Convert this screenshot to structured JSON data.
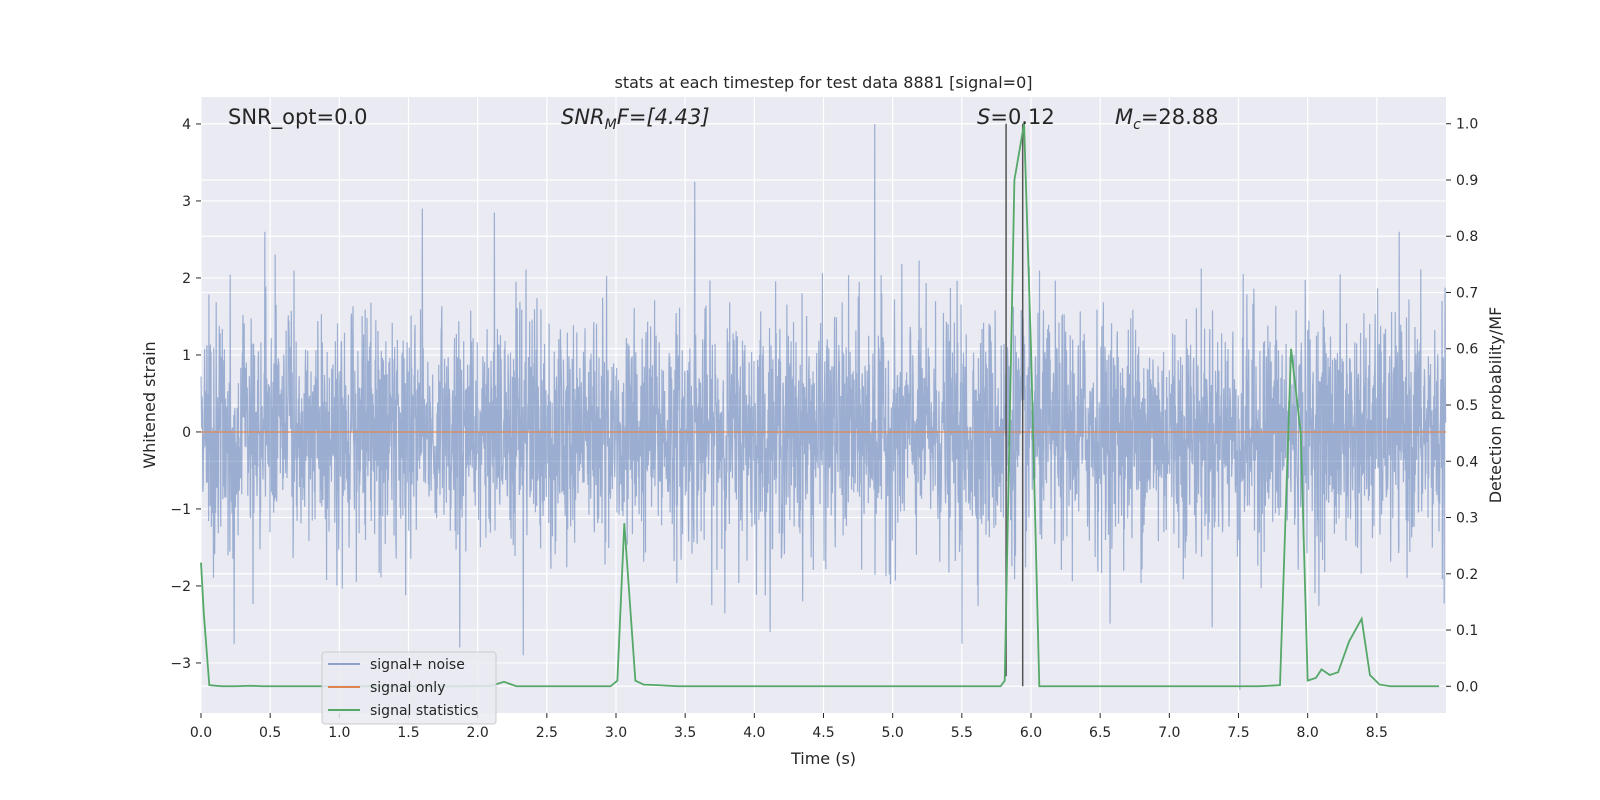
{
  "chart_data": {
    "type": "line",
    "title": "stats at each timestep for test data 8881 [signal=0]",
    "xlabel": "Time (s)",
    "ylabel_left": "Whitened strain",
    "ylabel_right": "Detection probability/MF",
    "xlim": [
      0.0,
      9.0
    ],
    "ylim_left": [
      -3.65,
      4.35
    ],
    "ylim_right": [
      -0.0475,
      1.0475
    ],
    "x_ticks": [
      0.0,
      0.5,
      1.0,
      1.5,
      2.0,
      2.5,
      3.0,
      3.5,
      4.0,
      4.5,
      5.0,
      5.5,
      6.0,
      6.5,
      7.0,
      7.5,
      8.0,
      8.5
    ],
    "x_tick_labels": [
      "0.0",
      "0.5",
      "1.0",
      "1.5",
      "2.0",
      "2.5",
      "3.0",
      "3.5",
      "4.0",
      "4.5",
      "5.0",
      "5.5",
      "6.0",
      "6.5",
      "7.0",
      "7.5",
      "8.0",
      "8.5"
    ],
    "y_left_ticks": [
      -3,
      -2,
      -1,
      0,
      1,
      2,
      3,
      4
    ],
    "y_left_tick_labels": [
      "−3",
      "−2",
      "−1",
      "0",
      "1",
      "2",
      "3",
      "4"
    ],
    "y_right_ticks": [
      0.0,
      0.1,
      0.2,
      0.3,
      0.4,
      0.5,
      0.6,
      0.7,
      0.8,
      0.9,
      1.0
    ],
    "y_right_tick_labels": [
      "0.0",
      "0.1",
      "0.2",
      "0.3",
      "0.4",
      "0.5",
      "0.6",
      "0.7",
      "0.8",
      "0.9",
      "1.0"
    ],
    "annotations": {
      "snr_opt": "SNR_opt=0.0",
      "snr_mf_prefix": "SNR",
      "snr_mf_sub": "M",
      "snr_mf_suffix": "F=[4.43]",
      "s_prefix": "S",
      "s_suffix": "=0.12",
      "mc_prefix": "M",
      "mc_sub": "c",
      "mc_suffix": "=28.88"
    },
    "vertical_lines": [
      5.82,
      5.94
    ],
    "series": [
      {
        "name": "signal+ noise",
        "axis": "left",
        "color": "#4c72b0",
        "style": "noise",
        "duration": 9.0,
        "sample_rate": 455,
        "spikes": [
          {
            "x": 4.87,
            "y": 4.0
          },
          {
            "x": 3.57,
            "y": 3.25
          },
          {
            "x": 1.6,
            "y": 2.9
          },
          {
            "x": 2.12,
            "y": 2.85
          },
          {
            "x": 1.87,
            "y": -2.8
          },
          {
            "x": 2.33,
            "y": -2.9
          },
          {
            "x": 7.51,
            "y": -3.35
          },
          {
            "x": 5.5,
            "y": -2.75
          },
          {
            "x": 0.24,
            "y": -2.75
          }
        ]
      },
      {
        "name": "signal only",
        "axis": "left",
        "color": "#dd8452",
        "x": [
          0.0,
          9.0
        ],
        "y": [
          0.0,
          0.0
        ]
      },
      {
        "name": "signal statistics",
        "axis": "right",
        "color": "#55a868",
        "x": [
          0.0,
          0.02,
          0.06,
          0.15,
          0.25,
          0.35,
          0.45,
          0.55,
          0.7,
          0.9,
          1.1,
          1.3,
          1.5,
          1.7,
          1.9,
          2.1,
          2.19,
          2.28,
          2.4,
          2.6,
          2.8,
          2.96,
          3.01,
          3.06,
          3.14,
          3.2,
          3.3,
          3.45,
          3.6,
          3.8,
          4.0,
          4.5,
          5.0,
          5.5,
          5.78,
          5.81,
          5.88,
          5.95,
          6.0,
          6.06,
          6.3,
          6.6,
          7.0,
          7.4,
          7.65,
          7.8,
          7.88,
          7.95,
          8.0,
          8.06,
          8.1,
          8.16,
          8.22,
          8.3,
          8.39,
          8.45,
          8.52,
          8.6,
          8.75,
          8.95
        ],
        "y": [
          0.22,
          0.13,
          0.002,
          0.0,
          0.0,
          0.001,
          0.0,
          0.0,
          0.0,
          0.0,
          0.0,
          0.0,
          0.0,
          0.0,
          0.0,
          0.001,
          0.008,
          0.0,
          0.0,
          0.0,
          0.0,
          0.0,
          0.01,
          0.29,
          0.01,
          0.003,
          0.002,
          0.0,
          0.0,
          0.0,
          0.0,
          0.0,
          0.0,
          0.0,
          0.0,
          0.01,
          0.9,
          1.0,
          0.6,
          0.0,
          0.0,
          0.0,
          0.0,
          0.0,
          0.0,
          0.002,
          0.6,
          0.45,
          0.01,
          0.015,
          0.03,
          0.02,
          0.025,
          0.08,
          0.12,
          0.02,
          0.003,
          0.0,
          0.0,
          0.0
        ]
      }
    ],
    "legend": {
      "position": "lower-left",
      "entries": [
        {
          "label": "signal+ noise",
          "color": "#4c72b0"
        },
        {
          "label": "signal only",
          "color": "#dd8452"
        },
        {
          "label": "signal statistics",
          "color": "#55a868"
        }
      ]
    },
    "style": {
      "plot_bg": "#eaeaf2",
      "grid": "#ffffff",
      "text": "#262626",
      "vline": "#555555"
    }
  }
}
